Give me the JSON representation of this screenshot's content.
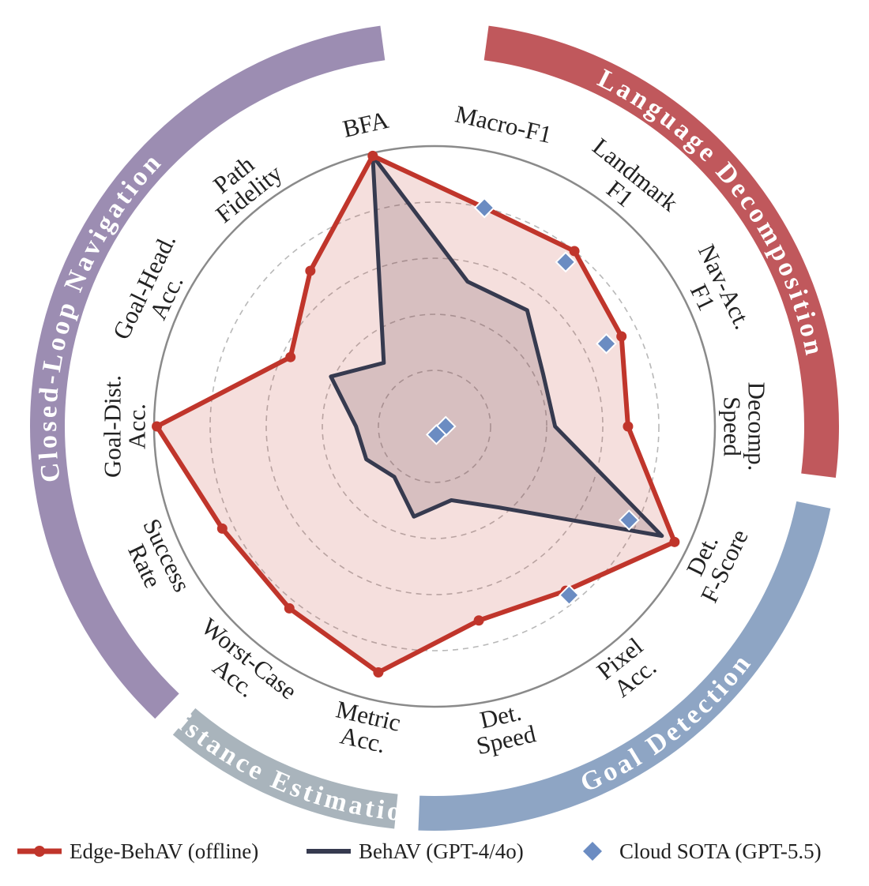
{
  "chart_data": {
    "type": "radar",
    "title": "",
    "scale": [
      0,
      1
    ],
    "grid": "dashed rings",
    "legend_position": "bottom",
    "axes": [
      {
        "label": [
          "Macro-F1"
        ]
      },
      {
        "label": [
          "Landmark",
          "F1"
        ]
      },
      {
        "label": [
          "Nav-Act.",
          "F1"
        ]
      },
      {
        "label": [
          "Decomp.",
          "Speed"
        ]
      },
      {
        "label": [
          "Det.",
          "F-Score"
        ]
      },
      {
        "label": [
          "Pixel",
          "Acc."
        ]
      },
      {
        "label": [
          "Det.",
          "Speed"
        ]
      },
      {
        "label": [
          "Metric",
          "Acc."
        ]
      },
      {
        "label": [
          "Worst-Case",
          "Acc."
        ]
      },
      {
        "label": [
          "Success",
          "Rate"
        ]
      },
      {
        "label": [
          "Goal-Dist.",
          "Acc."
        ]
      },
      {
        "label": [
          "Goal-Head.",
          "Acc."
        ]
      },
      {
        "label": [
          "Path",
          "Fidelity"
        ]
      },
      {
        "label": [
          "BFA"
        ]
      }
    ],
    "groups": [
      {
        "name": "Language Decomposition",
        "color": "#c0585c"
      },
      {
        "name": "Goal Detection",
        "color": "#8ea5c4"
      },
      {
        "name": "Distance Estimation",
        "color": "#a9b4bc"
      },
      {
        "name": "Closed-Loop Navigation",
        "color": "#9c8db2"
      }
    ],
    "series": [
      {
        "name": "Edge-BehAV (offline)",
        "color": "#c0352b",
        "values": [
          0.8,
          0.8,
          0.74,
          0.69,
          0.95,
          0.75,
          0.71,
          0.9,
          0.83,
          0.84,
          0.99,
          0.57,
          0.71,
          0.99
        ]
      },
      {
        "name": "BehAV (GPT-4/4o)",
        "color": "#363a4f",
        "values": [
          0.53,
          0.53,
          0.43,
          0.43,
          0.9,
          0.37,
          0.27,
          0.33,
          0.23,
          0.27,
          0.28,
          0.41,
          0.29,
          0.99
        ]
      },
      {
        "name": "Cloud SOTA (GPT-5.5)",
        "color": "#6b8cc2",
        "values": [
          0.8,
          0.75,
          0.68,
          0.04,
          0.77,
          0.77,
          0.03,
          null,
          null,
          null,
          null,
          null,
          null,
          null
        ]
      }
    ]
  }
}
